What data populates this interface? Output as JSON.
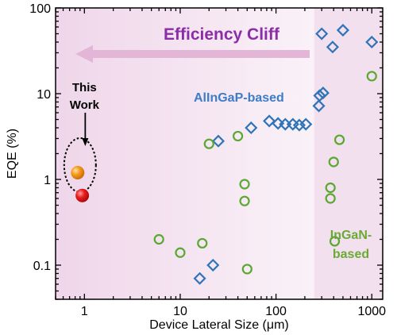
{
  "chart_data": {
    "type": "scatter",
    "x_scale": "log",
    "y_scale": "log",
    "xlim": [
      0.5,
      1300
    ],
    "ylim": [
      0.04,
      100
    ],
    "xlabel": "Device Lateral Size (μm)",
    "ylabel": "EQE (%)",
    "x_ticks": [
      {
        "value": 1,
        "label": "1"
      },
      {
        "value": 10,
        "label": "10"
      },
      {
        "value": 100,
        "label": "100"
      },
      {
        "value": 1000,
        "label": "1000"
      }
    ],
    "y_ticks": [
      {
        "value": 0.1,
        "label": "0.1"
      },
      {
        "value": 1,
        "label": "1"
      },
      {
        "value": 10,
        "label": "10"
      },
      {
        "value": 100,
        "label": "100"
      }
    ],
    "grid": false,
    "shaded_regions": [
      {
        "x_from": 0.5,
        "x_to": 250,
        "color": "#f2e0ee",
        "gradient": true
      },
      {
        "x_from": 250,
        "x_to": 1300,
        "color": "#f2e0ee"
      }
    ],
    "annotations": {
      "efficiency_cliff": {
        "text": "Efficiency Cliff",
        "color": "#8b2ca8",
        "arrow_color": "#e3b5d6"
      },
      "this_work": {
        "line1": "This",
        "line2": "Work"
      },
      "allngap_label": {
        "text": "AlInGaP-based",
        "color": "#3d7cc9"
      },
      "ingan_label": {
        "line1": "InGaN-",
        "line2": "based",
        "color": "#6aaa35"
      }
    },
    "series": [
      {
        "label_key": "this_work",
        "marker": "sphere",
        "points": [
          {
            "x": 0.85,
            "y": 1.2,
            "color": "#f08a10"
          },
          {
            "x": 0.95,
            "y": 0.65,
            "color": "#e01616"
          }
        ]
      },
      {
        "label_key": "allngap_label",
        "marker": "diamond",
        "color": "#2f73b8",
        "points": [
          {
            "x": 16,
            "y": 0.07
          },
          {
            "x": 22,
            "y": 0.1
          },
          {
            "x": 25,
            "y": 2.8
          },
          {
            "x": 55,
            "y": 4.0
          },
          {
            "x": 85,
            "y": 4.8
          },
          {
            "x": 105,
            "y": 4.5
          },
          {
            "x": 125,
            "y": 4.4
          },
          {
            "x": 150,
            "y": 4.4
          },
          {
            "x": 175,
            "y": 4.3
          },
          {
            "x": 205,
            "y": 4.4
          },
          {
            "x": 280,
            "y": 7.2
          },
          {
            "x": 285,
            "y": 9.5
          },
          {
            "x": 310,
            "y": 10.2
          },
          {
            "x": 300,
            "y": 50
          },
          {
            "x": 390,
            "y": 35
          },
          {
            "x": 500,
            "y": 55
          },
          {
            "x": 1000,
            "y": 40
          }
        ]
      },
      {
        "label_key": "ingan_label",
        "marker": "circle",
        "color": "#5aa832",
        "points": [
          {
            "x": 6,
            "y": 0.2
          },
          {
            "x": 10,
            "y": 0.14
          },
          {
            "x": 17,
            "y": 0.18
          },
          {
            "x": 20,
            "y": 2.6
          },
          {
            "x": 40,
            "y": 3.2
          },
          {
            "x": 47,
            "y": 0.88
          },
          {
            "x": 47,
            "y": 0.56
          },
          {
            "x": 50,
            "y": 0.09
          },
          {
            "x": 370,
            "y": 0.8
          },
          {
            "x": 370,
            "y": 0.6
          },
          {
            "x": 400,
            "y": 1.6
          },
          {
            "x": 410,
            "y": 0.19
          },
          {
            "x": 460,
            "y": 2.9
          },
          {
            "x": 1000,
            "y": 16
          }
        ]
      }
    ]
  }
}
